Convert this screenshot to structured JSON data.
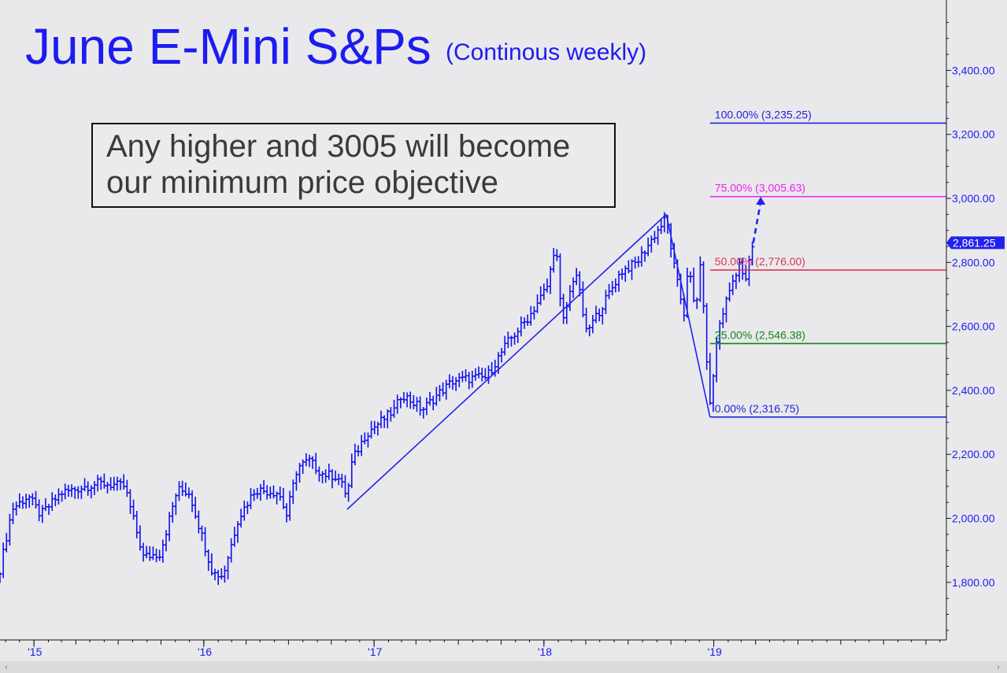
{
  "chart_data": {
    "type": "line",
    "title": "June E-Mini S&Ps",
    "subtitle": "(Continous weekly)",
    "annotation": [
      "Any higher and 3005 will become",
      "our minimum price objective"
    ],
    "ylim": [
      1620,
      3620
    ],
    "y_ticks": [
      {
        "value": 3400,
        "label": "3,400.00"
      },
      {
        "value": 3200,
        "label": "3,200.00"
      },
      {
        "value": 3000,
        "label": "3,000.00"
      },
      {
        "value": 2800,
        "label": "2,800.00"
      },
      {
        "value": 2600,
        "label": "2,600.00"
      },
      {
        "value": 2400,
        "label": "2,400.00"
      },
      {
        "value": 2200,
        "label": "2,200.00"
      },
      {
        "value": 2000,
        "label": "2,000.00"
      },
      {
        "value": 1800,
        "label": "1,800.00"
      }
    ],
    "xlim": [
      "2014-10-20",
      "2020-05-15"
    ],
    "x_ticks": [
      {
        "date": "2015-01-01",
        "label": "'15"
      },
      {
        "date": "2016-01-01",
        "label": "'16"
      },
      {
        "date": "2017-01-01",
        "label": "'17"
      },
      {
        "date": "2018-01-01",
        "label": "'18"
      },
      {
        "date": "2019-01-01",
        "label": "'19"
      }
    ],
    "last_price": {
      "value": 2861.25,
      "label": "2,861.25"
    },
    "price_path": [
      [
        "2014-10-20",
        1840
      ],
      [
        "2014-11-15",
        2030
      ],
      [
        "2014-12-20",
        2070
      ],
      [
        "2015-01-15",
        2010
      ],
      [
        "2015-03-01",
        2080
      ],
      [
        "2015-05-20",
        2110
      ],
      [
        "2015-07-15",
        2100
      ],
      [
        "2015-08-24",
        1880
      ],
      [
        "2015-09-29",
        1890
      ],
      [
        "2015-11-05",
        2090
      ],
      [
        "2015-12-01",
        2080
      ],
      [
        "2016-01-20",
        1830
      ],
      [
        "2016-02-11",
        1820
      ],
      [
        "2016-03-15",
        2000
      ],
      [
        "2016-04-20",
        2090
      ],
      [
        "2016-06-10",
        2080
      ],
      [
        "2016-06-27",
        2010
      ],
      [
        "2016-07-20",
        2160
      ],
      [
        "2016-08-15",
        2180
      ],
      [
        "2016-09-10",
        2140
      ],
      [
        "2016-10-15",
        2130
      ],
      [
        "2016-11-04",
        2070
      ],
      [
        "2016-11-15",
        2180
      ],
      [
        "2016-12-15",
        2265
      ],
      [
        "2017-02-15",
        2340
      ],
      [
        "2017-03-01",
        2390
      ],
      [
        "2017-04-15",
        2340
      ],
      [
        "2017-05-20",
        2390
      ],
      [
        "2017-06-20",
        2430
      ],
      [
        "2017-08-10",
        2440
      ],
      [
        "2017-08-30",
        2440
      ],
      [
        "2017-10-15",
        2550
      ],
      [
        "2017-11-30",
        2630
      ],
      [
        "2018-01-10",
        2730
      ],
      [
        "2018-01-26",
        2870
      ],
      [
        "2018-02-09",
        2600
      ],
      [
        "2018-03-10",
        2780
      ],
      [
        "2018-04-02",
        2580
      ],
      [
        "2018-05-01",
        2650
      ],
      [
        "2018-06-15",
        2770
      ],
      [
        "2018-07-20",
        2800
      ],
      [
        "2018-08-20",
        2870
      ],
      [
        "2018-09-21",
        2940
      ],
      [
        "2018-10-11",
        2760
      ],
      [
        "2018-10-29",
        2640
      ],
      [
        "2018-11-07",
        2800
      ],
      [
        "2018-11-23",
        2630
      ],
      [
        "2018-12-03",
        2800
      ],
      [
        "2018-12-24",
        2350
      ],
      [
        "2019-01-10",
        2590
      ],
      [
        "2019-02-01",
        2700
      ],
      [
        "2019-02-25",
        2800
      ],
      [
        "2019-03-08",
        2730
      ],
      [
        "2019-03-27",
        2861
      ]
    ],
    "projection": [
      [
        "2019-03-27",
        2861
      ],
      [
        "2019-04-12",
        3005
      ]
    ],
    "pattern_lines": [
      [
        [
          "2016-11-04",
          2028
        ],
        [
          "2018-09-21",
          2950
        ]
      ],
      [
        [
          "2018-09-21",
          2950
        ],
        [
          "2018-12-24",
          2316.75
        ]
      ]
    ],
    "fib_levels": [
      {
        "pct": "100.00%",
        "value": 3235.25,
        "label": "100.00% (3,235.25)",
        "color": "#2222dd"
      },
      {
        "pct": "75.00%",
        "value": 3005.63,
        "label": "75.00% (3,005.63)",
        "color": "#ee22ee"
      },
      {
        "pct": "50.00%",
        "value": 2776.0,
        "label": "50.00% (2,776.00)",
        "color": "#dd3355"
      },
      {
        "pct": "25.00%",
        "value": 2546.38,
        "label": "25.00% (2,546.38)",
        "color": "#118811"
      },
      {
        "pct": "0.00%",
        "value": 2316.75,
        "label": "0.00% (2,316.75)",
        "color": "#2222dd"
      }
    ],
    "series_color": "#1010ee",
    "grid": false,
    "legend": "none"
  },
  "colors": {
    "background": "#e9e9ec",
    "axis": "#111111",
    "text_blue": "#1c1cf0"
  },
  "scrollbar": {
    "left_icon": "chevron-left-icon",
    "right_icon": "chevron-right-icon",
    "left_glyph": "‹",
    "right_glyph": "›"
  }
}
